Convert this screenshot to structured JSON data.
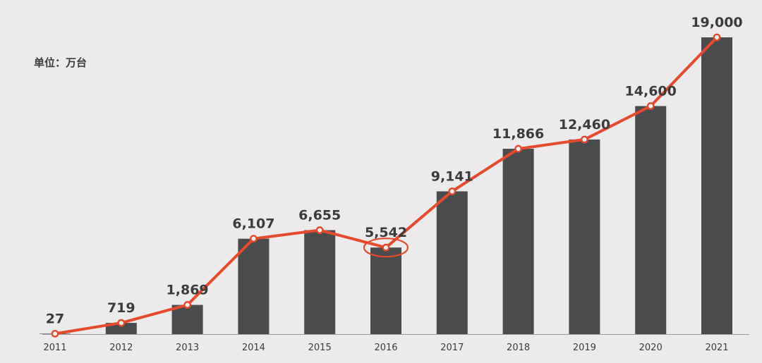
{
  "chart_data": {
    "type": "bar",
    "unit_label": "单位：万台",
    "title": "",
    "xlabel": "",
    "ylabel": "",
    "categories": [
      "2011",
      "2012",
      "2013",
      "2014",
      "2015",
      "2016",
      "2017",
      "2018",
      "2019",
      "2020",
      "2021"
    ],
    "values": [
      27,
      719,
      1869,
      6107,
      6655,
      5542,
      9141,
      11866,
      12460,
      14600,
      19000
    ],
    "value_labels": [
      "27",
      "719",
      "1,869",
      "6,107",
      "6,655",
      "5,542",
      "9,141",
      "11,866",
      "12,460",
      "14,600",
      "19,000"
    ],
    "ylim": [
      0,
      19000
    ],
    "grid": false,
    "legend": "none",
    "overlay_line": {
      "type": "line",
      "values": [
        27,
        719,
        1869,
        6107,
        6655,
        5542,
        9141,
        11866,
        12460,
        14600,
        19000
      ]
    },
    "highlighted_category": "2016",
    "colors": {
      "background": "#eceaea",
      "bar": "#4a4b4d",
      "line": "#e64a2e",
      "marker_fill": "#f2f0f0",
      "text": "#3b3b3b",
      "axis": "#9a9a9a"
    }
  }
}
